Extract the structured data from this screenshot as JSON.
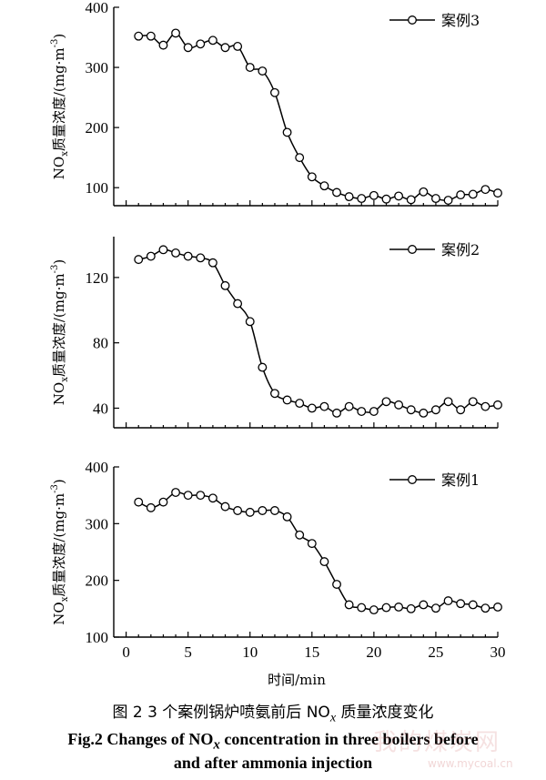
{
  "figure": {
    "caption_cn": "图 2 3 个案例锅炉喷氨前后 NO",
    "caption_cn_sub": "x",
    "caption_cn_tail": " 质量浓度变化",
    "caption_en_line1_a": "Fig.2 Changes of NO",
    "caption_en_line1_sub": "x",
    "caption_en_line1_b": " concentration in three boilers before",
    "caption_en_line2": "and after ammonia injection",
    "watermark": "我的煤炭网",
    "watermark_url": "www.mycoal.cn"
  },
  "chart_data": [
    {
      "type": "line",
      "legend_label": "案例3",
      "ylabel_main": "NO",
      "ylabel_sub": "x",
      "ylabel_tail": "质量浓度/(mg·m",
      "ylabel_sup": "-3",
      "ylabel_close": ")",
      "ylim": [
        70,
        400
      ],
      "yticks": [
        100,
        200,
        300,
        400
      ],
      "xlim": [
        -1,
        30
      ],
      "x": [
        1,
        2,
        3,
        4,
        5,
        6,
        7,
        8,
        9,
        10,
        11,
        12,
        13,
        14,
        15,
        16,
        17,
        18,
        19,
        20,
        21,
        22,
        23,
        24,
        25,
        26,
        27,
        28,
        29,
        30
      ],
      "values": [
        352,
        352,
        337,
        357,
        333,
        339,
        345,
        333,
        335,
        300,
        294,
        258,
        192,
        150,
        118,
        103,
        92,
        85,
        82,
        87,
        81,
        86,
        80,
        93,
        82,
        79,
        88,
        89,
        97,
        91
      ]
    },
    {
      "type": "line",
      "legend_label": "案例2",
      "ylabel_main": "NO",
      "ylabel_sub": "x",
      "ylabel_tail": "质量浓度/(mg·m",
      "ylabel_sup": "-3",
      "ylabel_close": ")",
      "ylim": [
        28,
        145
      ],
      "yticks": [
        40,
        80,
        120
      ],
      "xlim": [
        -1,
        30
      ],
      "x": [
        1,
        2,
        3,
        4,
        5,
        6,
        7,
        8,
        9,
        10,
        11,
        12,
        13,
        14,
        15,
        16,
        17,
        18,
        19,
        20,
        21,
        22,
        23,
        24,
        25,
        26,
        27,
        28,
        29,
        30
      ],
      "values": [
        131,
        133,
        137,
        135,
        133,
        132,
        129,
        115,
        104,
        93,
        65,
        49,
        45,
        43,
        40,
        41,
        37,
        41,
        38,
        38,
        44,
        42,
        39,
        37,
        39,
        44,
        39,
        44,
        41,
        42
      ]
    },
    {
      "type": "line",
      "legend_label": "案例1",
      "ylabel_main": "NO",
      "ylabel_sub": "x",
      "ylabel_tail": "质量浓度/(mg·m",
      "ylabel_sup": "-3",
      "ylabel_close": ")",
      "ylim": [
        100,
        400
      ],
      "yticks": [
        100,
        200,
        300,
        400
      ],
      "xlim": [
        -1,
        30
      ],
      "xticks": [
        0,
        5,
        10,
        15,
        20,
        25,
        30
      ],
      "xlabel": "时间/min",
      "x": [
        1,
        2,
        3,
        4,
        5,
        6,
        7,
        8,
        9,
        10,
        11,
        12,
        13,
        14,
        15,
        16,
        17,
        18,
        19,
        20,
        21,
        22,
        23,
        24,
        25,
        26,
        27,
        28,
        29,
        30
      ],
      "values": [
        338,
        328,
        338,
        355,
        350,
        350,
        345,
        330,
        323,
        320,
        323,
        323,
        312,
        280,
        265,
        233,
        193,
        157,
        152,
        148,
        152,
        153,
        150,
        157,
        151,
        164,
        159,
        157,
        151,
        153
      ]
    }
  ]
}
